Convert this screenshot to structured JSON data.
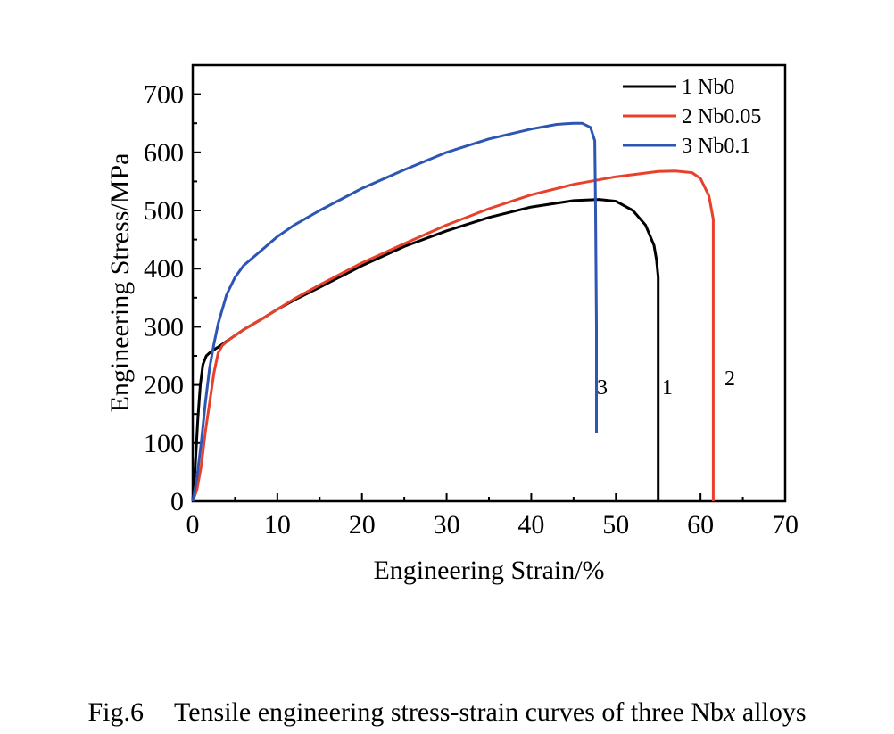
{
  "chart_data": {
    "type": "line",
    "xlabel": "Engineering Strain/%",
    "ylabel": "Engineering Stress/MPa",
    "xlim": [
      0,
      70
    ],
    "ylim": [
      0,
      750
    ],
    "xticks": [
      0,
      10,
      20,
      30,
      40,
      50,
      60,
      70
    ],
    "yticks": [
      0,
      100,
      200,
      300,
      400,
      500,
      600,
      700
    ],
    "grid": false,
    "legend_position": "top-right",
    "series": [
      {
        "name": "1 Nb0",
        "label": "1",
        "color": "#000000",
        "points": [
          [
            0,
            0
          ],
          [
            0.3,
            60
          ],
          [
            0.6,
            140
          ],
          [
            0.9,
            200
          ],
          [
            1.2,
            235
          ],
          [
            1.6,
            250
          ],
          [
            2.2,
            258
          ],
          [
            3,
            265
          ],
          [
            4,
            275
          ],
          [
            6,
            295
          ],
          [
            8,
            312
          ],
          [
            10,
            330
          ],
          [
            12,
            346
          ],
          [
            15,
            368
          ],
          [
            20,
            405
          ],
          [
            25,
            438
          ],
          [
            30,
            465
          ],
          [
            35,
            488
          ],
          [
            40,
            506
          ],
          [
            45,
            517
          ],
          [
            48,
            519
          ],
          [
            50,
            516
          ],
          [
            52,
            500
          ],
          [
            53.5,
            475
          ],
          [
            54.5,
            440
          ],
          [
            54.8,
            415
          ],
          [
            55.0,
            385
          ],
          [
            55.0,
            200
          ],
          [
            55.0,
            0
          ]
        ]
      },
      {
        "name": "2 Nb0.05",
        "label": "2",
        "color": "#e8402a",
        "points": [
          [
            0,
            0
          ],
          [
            0.5,
            20
          ],
          [
            1,
            60
          ],
          [
            1.5,
            120
          ],
          [
            2,
            170
          ],
          [
            2.5,
            220
          ],
          [
            3,
            255
          ],
          [
            3.5,
            268
          ],
          [
            4.5,
            280
          ],
          [
            6,
            295
          ],
          [
            8,
            312
          ],
          [
            10,
            330
          ],
          [
            12,
            348
          ],
          [
            15,
            372
          ],
          [
            20,
            410
          ],
          [
            25,
            443
          ],
          [
            30,
            475
          ],
          [
            35,
            503
          ],
          [
            40,
            527
          ],
          [
            45,
            545
          ],
          [
            50,
            558
          ],
          [
            55,
            567
          ],
          [
            57,
            568
          ],
          [
            59,
            565
          ],
          [
            60,
            555
          ],
          [
            61,
            525
          ],
          [
            61.5,
            485
          ],
          [
            61.5,
            250
          ],
          [
            61.5,
            0
          ]
        ]
      },
      {
        "name": "3 Nb0.1",
        "label": "3",
        "color": "#2d55b4",
        "points": [
          [
            0,
            0
          ],
          [
            0.5,
            40
          ],
          [
            1,
            100
          ],
          [
            1.5,
            170
          ],
          [
            2,
            230
          ],
          [
            2.5,
            270
          ],
          [
            3,
            305
          ],
          [
            4,
            355
          ],
          [
            5,
            385
          ],
          [
            6,
            405
          ],
          [
            8,
            430
          ],
          [
            10,
            455
          ],
          [
            12,
            475
          ],
          [
            15,
            500
          ],
          [
            20,
            538
          ],
          [
            25,
            570
          ],
          [
            30,
            600
          ],
          [
            35,
            623
          ],
          [
            40,
            640
          ],
          [
            43,
            648
          ],
          [
            45,
            650
          ],
          [
            46,
            650
          ],
          [
            47,
            643
          ],
          [
            47.5,
            620
          ],
          [
            47.6,
            500
          ],
          [
            47.7,
            300
          ],
          [
            47.7,
            118
          ]
        ]
      }
    ]
  },
  "caption": {
    "figure_label": "Fig.6",
    "text_before": "Tensile engineering stress-strain curves of three Nb",
    "text_italic": "x",
    "text_after": " alloys"
  }
}
